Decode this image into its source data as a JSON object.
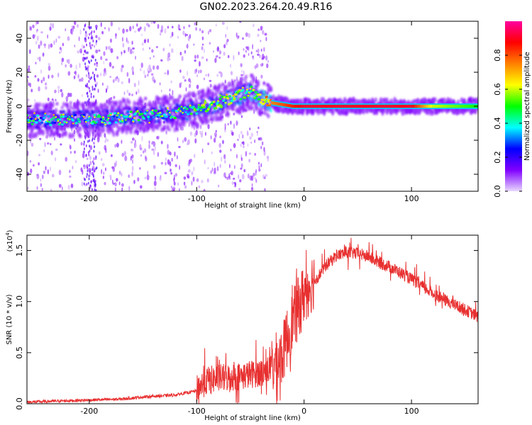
{
  "title": "GN02.2023.264.20.49.R16",
  "chart_data": [
    {
      "type": "heatmap",
      "xlabel": "Height of straight line (km)",
      "ylabel": "Frequency (Hz)",
      "xlim": [
        -258,
        162
      ],
      "ylim": [
        -50,
        50
      ],
      "x_ticks": [
        -200,
        -100,
        0,
        100
      ],
      "y_ticks": [
        -40,
        -20,
        0,
        20,
        40
      ],
      "colorbar": {
        "label": "Normalized spectral amplitude",
        "range": [
          0,
          1
        ],
        "ticks": [
          "0.0",
          "0.2",
          "0.4",
          "0.6",
          "0.8"
        ],
        "colors": [
          "#e8d8ff",
          "#8000ff",
          "#0000ff",
          "#00ffff",
          "#00ff00",
          "#ffff00",
          "#ff8000",
          "#ff0000",
          "#ff00a0"
        ]
      },
      "ridge": {
        "x": [
          -258,
          -220,
          -180,
          -150,
          -120,
          -100,
          -80,
          -60,
          -50,
          -40,
          -35,
          -30,
          -20,
          -10,
          0,
          50,
          100,
          120,
          162
        ],
        "freq_hz": [
          -8,
          -8,
          -7,
          -5,
          -4,
          -2,
          2,
          6,
          9,
          5,
          3,
          2,
          1,
          0,
          0,
          0,
          0,
          0,
          0
        ],
        "amplitude": [
          0.35,
          0.35,
          0.38,
          0.4,
          0.4,
          0.45,
          0.5,
          0.5,
          0.5,
          0.6,
          0.7,
          0.75,
          0.8,
          0.85,
          0.9,
          0.9,
          0.9,
          0.6,
          0.5
        ]
      }
    },
    {
      "type": "line",
      "xlabel": "Height of straight line (km)",
      "ylabel": "SNR (10 * v/v)",
      "y_multiplier": "(x10",
      "y_multiplier_exp": "4",
      "y_multiplier_close": ")",
      "xlim": [
        -258,
        162
      ],
      "ylim": [
        0,
        1.65
      ],
      "x_ticks": [
        -200,
        -100,
        0,
        100
      ],
      "y_ticks": [
        "0.0",
        "0.5",
        "1.0",
        "1.5"
      ],
      "color": "#e83030",
      "series": {
        "x": [
          -258,
          -230,
          -200,
          -170,
          -150,
          -120,
          -100,
          -90,
          -80,
          -60,
          -40,
          -30,
          -20,
          -15,
          -10,
          0,
          10,
          20,
          30,
          40,
          50,
          60,
          70,
          80,
          90,
          100,
          110,
          120,
          130,
          140,
          150,
          162
        ],
        "y": [
          0.01,
          0.02,
          0.03,
          0.04,
          0.06,
          0.08,
          0.12,
          0.2,
          0.22,
          0.24,
          0.28,
          0.32,
          0.45,
          0.65,
          0.8,
          1.05,
          1.2,
          1.35,
          1.45,
          1.48,
          1.47,
          1.44,
          1.38,
          1.34,
          1.28,
          1.22,
          1.15,
          1.08,
          1.02,
          0.97,
          0.92,
          0.85
        ]
      }
    }
  ]
}
